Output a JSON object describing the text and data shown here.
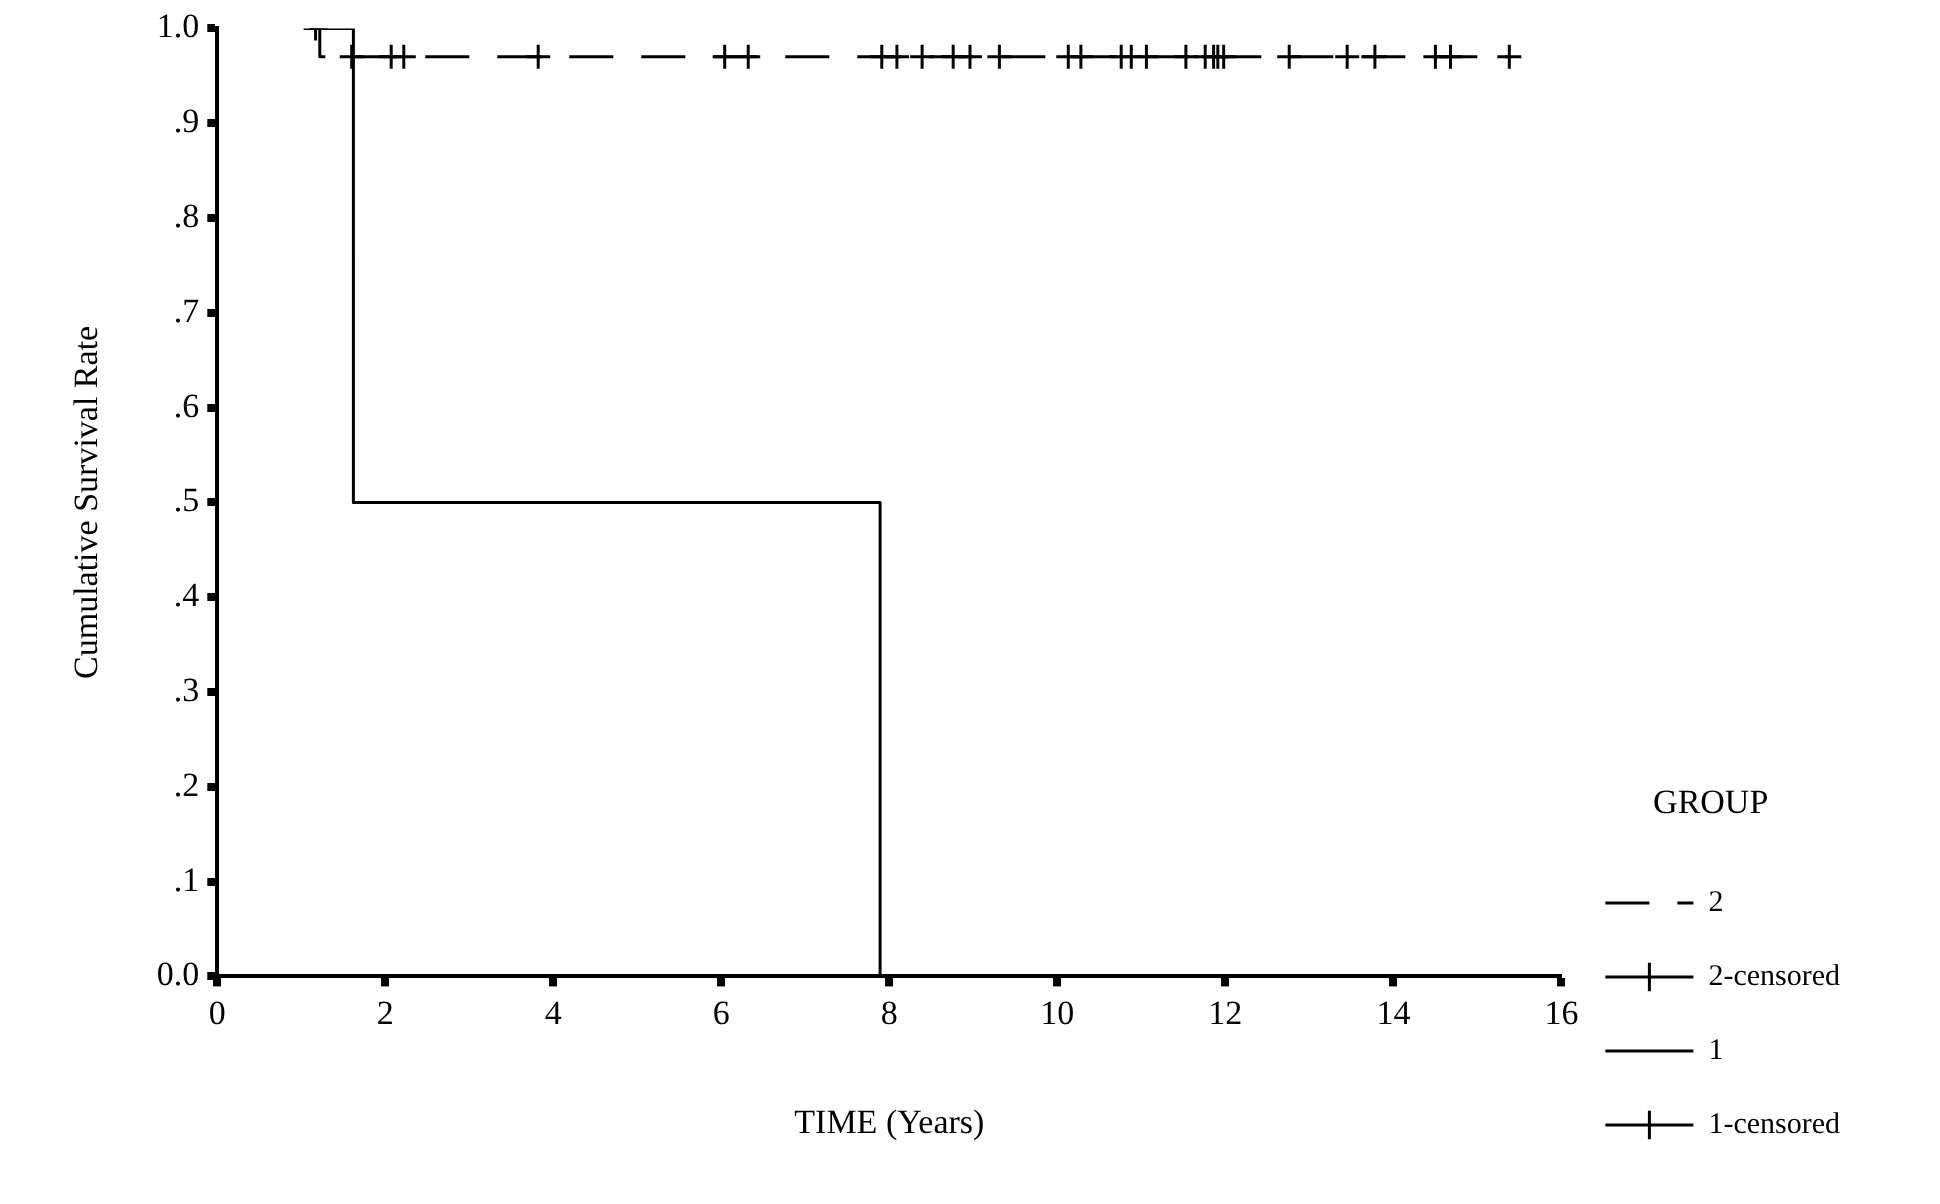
{
  "chart_data": {
    "type": "step",
    "xlabel": "TIME (Years)",
    "ylabel": "Cumulative Survival Rate",
    "legend_title": "GROUP",
    "legend": "right",
    "grid": false,
    "xlim": [
      0,
      16
    ],
    "xticks": [
      0,
      2,
      4,
      6,
      8,
      10,
      12,
      14,
      16
    ],
    "ylim": [
      0,
      1
    ],
    "yticks": [
      {
        "value": 0,
        "label": "0.0"
      },
      {
        "value": 0.1,
        "label": ".1"
      },
      {
        "value": 0.2,
        "label": ".2"
      },
      {
        "value": 0.3,
        "label": ".3"
      },
      {
        "value": 0.4,
        "label": ".4"
      },
      {
        "value": 0.5,
        "label": ".5"
      },
      {
        "value": 0.6,
        "label": ".6"
      },
      {
        "value": 0.7,
        "label": ".7"
      },
      {
        "value": 0.8,
        "label": ".8"
      },
      {
        "value": 0.9,
        "label": ".9"
      },
      {
        "value": 1,
        "label": "1.0"
      }
    ],
    "series": [
      {
        "name": "2",
        "type": "step",
        "color": "#000000",
        "line_style": "dashed",
        "x": [
          1.1,
          1.22,
          15.38
        ],
        "values": [
          1,
          0.97,
          0.97
        ]
      },
      {
        "name": "2-censored",
        "type": "scatter",
        "color": "#000000",
        "marker": "cross",
        "x": [
          1.6,
          2.07,
          2.22,
          3.82,
          6.04,
          6.32,
          7.91,
          8.09,
          8.39,
          8.76,
          8.96,
          9.31,
          10.13,
          10.28,
          10.76,
          10.88,
          11.06,
          11.53,
          11.76,
          11.86,
          11.91,
          11.98,
          12.76,
          13.45,
          13.78,
          14.5,
          14.68,
          15.38
        ],
        "values": [
          0.97,
          0.97,
          0.97,
          0.97,
          0.97,
          0.97,
          0.97,
          0.97,
          0.97,
          0.97,
          0.97,
          0.97,
          0.97,
          0.97,
          0.97,
          0.97,
          0.97,
          0.97,
          0.97,
          0.97,
          0.97,
          0.97,
          0.97,
          0.97,
          0.97,
          0.97,
          0.97,
          0.97
        ]
      },
      {
        "name": "1",
        "type": "step",
        "color": "#000000",
        "line_style": "solid",
        "x": [
          1.1,
          1.62,
          7.89
        ],
        "values": [
          1,
          0.5,
          0
        ]
      },
      {
        "name": "1-censored",
        "type": "scatter",
        "color": "#000000",
        "marker": "cross",
        "x": [
          1.17
        ],
        "values": [
          1
        ]
      }
    ]
  }
}
